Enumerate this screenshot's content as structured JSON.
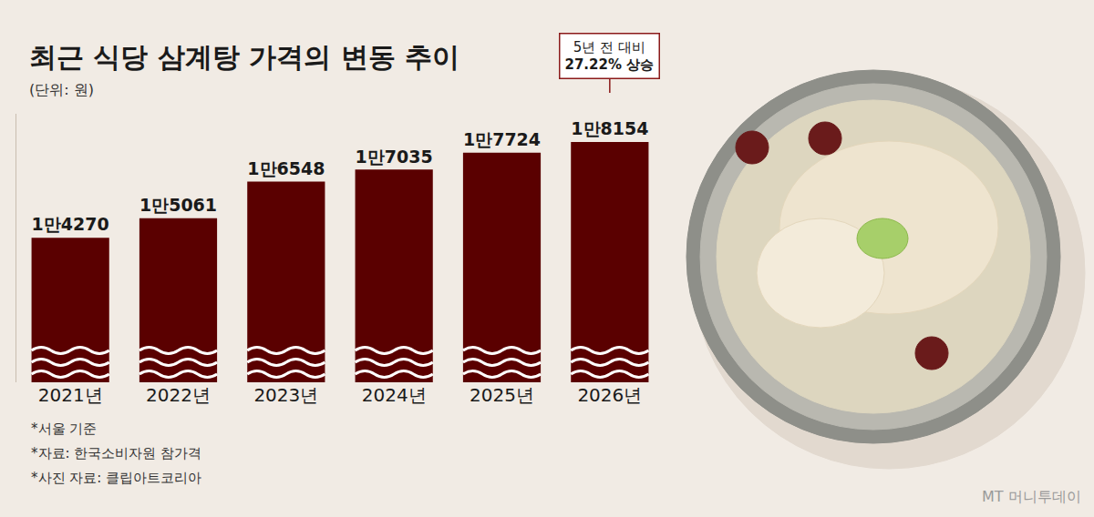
{
  "chart_data": {
    "type": "bar",
    "title": "최근 식당 삼계탕 가격의 변동 추이",
    "subtitle": "(단위: 원)",
    "categories": [
      "2021년",
      "2022년",
      "2023년",
      "2024년",
      "2025년",
      "2026년"
    ],
    "values": [
      14270,
      15061,
      16548,
      17035,
      17724,
      18154
    ],
    "value_labels": [
      "1만4270",
      "1만5061",
      "1만6548",
      "1만7035",
      "1만7724",
      "1만8154"
    ],
    "color": "#5a0000",
    "ylim": [
      8400,
      19300
    ],
    "yticks": [],
    "tick_labels": "x",
    "data_labels": true,
    "grid": false,
    "annotation": {
      "category": "2026년",
      "text": [
        "5년 전 대비",
        "27.22% 상승"
      ]
    },
    "notes": [
      "*서울 기준",
      "*자료: 한국소비자원 참가격",
      "*사진 자료: 클립아트코리아"
    ],
    "source": "MT 머니투데이"
  }
}
